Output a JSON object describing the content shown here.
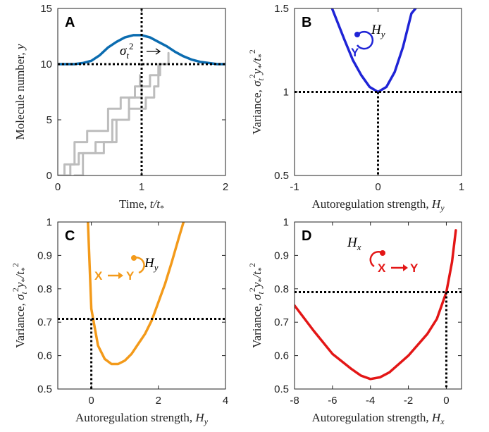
{
  "colors": {
    "panelA": "#0b6cb0",
    "panelB": "#1f24d6",
    "panelC": "#f39a1a",
    "panelD": "#e31616",
    "gray": "#bdbdbd",
    "axis": "#222222",
    "dotted": "#000000"
  },
  "chart_data": [
    {
      "id": "A",
      "type": "line",
      "letter": "A",
      "xlabel": "Time, t/t*",
      "ylabel": "Molecule number, y",
      "xlim": [
        0,
        2
      ],
      "ylim": [
        0,
        15
      ],
      "xticks": [
        "0",
        "1",
        "2"
      ],
      "yticks": [
        "0",
        "5",
        "10",
        "15"
      ],
      "annotation": "σt² →",
      "series": [
        {
          "role": "mean",
          "x": [
            0,
            0.2,
            0.3,
            0.4,
            0.5,
            0.6,
            0.7,
            0.8,
            0.9,
            1.0,
            1.1,
            1.2,
            1.3,
            1.4,
            1.5,
            1.6,
            1.7,
            1.8,
            1.9,
            2.0
          ],
          "y": [
            10,
            10,
            10.1,
            10.3,
            10.8,
            11.5,
            12.0,
            12.4,
            12.6,
            12.6,
            12.4,
            12.0,
            11.6,
            11.1,
            10.7,
            10.4,
            10.2,
            10.1,
            10.0,
            10.0
          ]
        },
        {
          "role": "trajectory",
          "x": [
            0,
            0.08,
            0.08,
            0.2,
            0.2,
            0.35,
            0.35,
            0.6,
            0.6,
            0.75,
            0.75,
            0.92,
            0.92,
            0.98,
            0.98
          ],
          "y": [
            0,
            0,
            1,
            1,
            3,
            3,
            4,
            4,
            6,
            6,
            7,
            7,
            8,
            8,
            9
          ]
        },
        {
          "role": "trajectory",
          "x": [
            0.05,
            0.15,
            0.15,
            0.25,
            0.25,
            0.45,
            0.45,
            0.65,
            0.65,
            0.85,
            0.85,
            1.05,
            1.05,
            1.15,
            1.15,
            1.2,
            1.2
          ],
          "y": [
            0,
            0,
            1,
            1,
            2,
            2,
            3,
            3,
            5,
            5,
            6,
            6,
            7,
            7,
            8,
            8,
            10
          ]
        },
        {
          "role": "trajectory",
          "x": [
            0.2,
            0.3,
            0.3,
            0.55,
            0.55,
            0.7,
            0.7,
            0.85,
            0.85,
            1.0,
            1.0,
            1.1,
            1.1,
            1.22,
            1.22,
            1.32,
            1.32
          ],
          "y": [
            0,
            0,
            2,
            2,
            3,
            3,
            5,
            5,
            7,
            7,
            8,
            8,
            9,
            9,
            10,
            10,
            11
          ]
        }
      ],
      "refs": {
        "h": 10,
        "v": 1
      }
    },
    {
      "id": "B",
      "type": "line",
      "letter": "B",
      "xlabel": "Autoregulation strength, Hy",
      "ylabel": "Variance, σt²y*/t*²",
      "xlim": [
        -1,
        1
      ],
      "ylim": [
        0.5,
        1.5
      ],
      "xticks": [
        "-1",
        "0",
        "1"
      ],
      "yticks": [
        "0.5",
        "1",
        "1.5"
      ],
      "annotation": "Hy",
      "motif": [
        "Y"
      ],
      "series": [
        {
          "x": [
            -0.55,
            -0.4,
            -0.3,
            -0.2,
            -0.1,
            0,
            0.1,
            0.2,
            0.3,
            0.4,
            0.45
          ],
          "y": [
            1.5,
            1.31,
            1.19,
            1.1,
            1.03,
            1.0,
            1.03,
            1.12,
            1.27,
            1.47,
            1.5
          ]
        }
      ],
      "refs": {
        "h": 1,
        "v": 0
      }
    },
    {
      "id": "C",
      "type": "line",
      "letter": "C",
      "xlabel": "Autoregulation strength, Hy",
      "ylabel": "Variance, σt²y*/t*²",
      "xlim": [
        -1,
        4
      ],
      "ylim": [
        0.5,
        1
      ],
      "xticks": [
        "0",
        "2",
        "4"
      ],
      "yticks": [
        "0.5",
        "0.6",
        "0.7",
        "0.8",
        "0.9",
        "1"
      ],
      "annotation": "Hy",
      "motif": [
        "X",
        "Y"
      ],
      "series": [
        {
          "x": [
            -0.1,
            0,
            0.2,
            0.4,
            0.6,
            0.8,
            1.0,
            1.2,
            1.4,
            1.6,
            1.8,
            2.0,
            2.2,
            2.4,
            2.6,
            2.75
          ],
          "y": [
            1.0,
            0.74,
            0.63,
            0.59,
            0.575,
            0.575,
            0.585,
            0.605,
            0.635,
            0.665,
            0.705,
            0.76,
            0.815,
            0.88,
            0.95,
            1.0
          ]
        }
      ],
      "refs": {
        "h": 0.71,
        "v": 0
      }
    },
    {
      "id": "D",
      "type": "line",
      "letter": "D",
      "xlabel": "Autoregulation strength, Hx",
      "ylabel": "Variance, σt²y*/t*²",
      "xlim": [
        -8,
        0.8
      ],
      "ylim": [
        0.5,
        1
      ],
      "xticks": [
        "-8",
        "-6",
        "-4",
        "-2",
        "0"
      ],
      "yticks": [
        "0.5",
        "0.6",
        "0.7",
        "0.8",
        "0.9",
        "1"
      ],
      "annotation": "Hx",
      "motif": [
        "X",
        "Y"
      ],
      "series": [
        {
          "x": [
            -8,
            -7,
            -6,
            -5,
            -4.5,
            -4,
            -3.5,
            -3,
            -2,
            -1,
            -0.5,
            0,
            0.3,
            0.5
          ],
          "y": [
            0.75,
            0.675,
            0.605,
            0.56,
            0.54,
            0.53,
            0.535,
            0.55,
            0.6,
            0.665,
            0.71,
            0.79,
            0.88,
            0.975
          ]
        }
      ],
      "refs": {
        "h": 0.79,
        "v": 0
      }
    }
  ]
}
